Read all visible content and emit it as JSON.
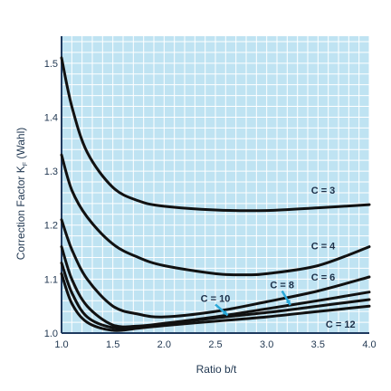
{
  "chart_data": {
    "type": "line",
    "xlabel": "Ratio b/t",
    "ylabel": "Correction Factor K",
    "ylabel_sub": "F",
    "ylabel_suffix": " (Wahl)",
    "xlim": [
      1.0,
      4.0
    ],
    "ylim": [
      1.0,
      1.55
    ],
    "x_ticks": [
      1.0,
      1.5,
      2.0,
      2.5,
      3.0,
      3.5,
      4.0
    ],
    "y_ticks": [
      1.0,
      1.1,
      1.2,
      1.3,
      1.4,
      1.5
    ],
    "grid": true,
    "colors": {
      "plot_background": "#bfe3f2",
      "grid": "#ffffff",
      "axis": "#1f3a5f",
      "curve": "#111111",
      "pointer": "#2aa8d8",
      "text": "#1f3650"
    },
    "series": [
      {
        "name": "C = 3",
        "x": [
          1.0,
          1.1,
          1.25,
          1.5,
          1.75,
          2.0,
          2.5,
          3.0,
          3.5,
          4.0
        ],
        "y": [
          1.51,
          1.42,
          1.335,
          1.27,
          1.245,
          1.235,
          1.228,
          1.227,
          1.232,
          1.238
        ]
      },
      {
        "name": "C = 4",
        "x": [
          1.0,
          1.1,
          1.25,
          1.5,
          1.75,
          2.0,
          2.5,
          2.8,
          3.0,
          3.5,
          4.0
        ],
        "y": [
          1.33,
          1.265,
          1.215,
          1.165,
          1.14,
          1.125,
          1.11,
          1.108,
          1.11,
          1.125,
          1.16
        ]
      },
      {
        "name": "C = 6",
        "x": [
          1.0,
          1.1,
          1.25,
          1.5,
          1.75,
          2.0,
          2.5,
          3.0,
          3.5,
          4.0
        ],
        "y": [
          1.21,
          1.155,
          1.1,
          1.05,
          1.035,
          1.03,
          1.04,
          1.058,
          1.078,
          1.104
        ]
      },
      {
        "name": "C = 8",
        "x": [
          1.0,
          1.1,
          1.25,
          1.5,
          1.75,
          2.0,
          2.5,
          3.0,
          3.5,
          4.0
        ],
        "y": [
          1.16,
          1.1,
          1.05,
          1.015,
          1.013,
          1.018,
          1.03,
          1.045,
          1.06,
          1.076
        ]
      },
      {
        "name": "C = 10",
        "x": [
          1.0,
          1.1,
          1.25,
          1.5,
          1.75,
          2.0,
          2.5,
          3.0,
          3.5,
          4.0
        ],
        "y": [
          1.13,
          1.075,
          1.03,
          1.01,
          1.012,
          1.017,
          1.028,
          1.038,
          1.05,
          1.062
        ]
      },
      {
        "name": "C = 12",
        "x": [
          1.0,
          1.1,
          1.25,
          1.5,
          1.75,
          2.0,
          2.5,
          3.0,
          3.5,
          4.0
        ],
        "y": [
          1.11,
          1.055,
          1.02,
          1.005,
          1.009,
          1.014,
          1.022,
          1.03,
          1.04,
          1.05
        ]
      }
    ],
    "annotations": [
      {
        "series": "C = 3",
        "text": "C = 3",
        "x": 3.55,
        "y": 1.258,
        "pointer": false
      },
      {
        "series": "C = 4",
        "text": "C = 4",
        "x": 3.55,
        "y": 1.155,
        "pointer": false
      },
      {
        "series": "C = 6",
        "text": "C = 6",
        "x": 3.55,
        "y": 1.097,
        "pointer": false
      },
      {
        "series": "C = 8",
        "text": "C = 8",
        "x": 3.15,
        "y": 1.083,
        "pointer": true,
        "target_x": 3.23,
        "target_y": 1.052
      },
      {
        "series": "C = 10",
        "text": "C = 10",
        "x": 2.5,
        "y": 1.058,
        "pointer": true,
        "target_x": 2.62,
        "target_y": 1.033
      },
      {
        "series": "C = 12",
        "text": "C = 12",
        "x": 3.72,
        "y": 1.01,
        "pointer": false
      }
    ]
  }
}
